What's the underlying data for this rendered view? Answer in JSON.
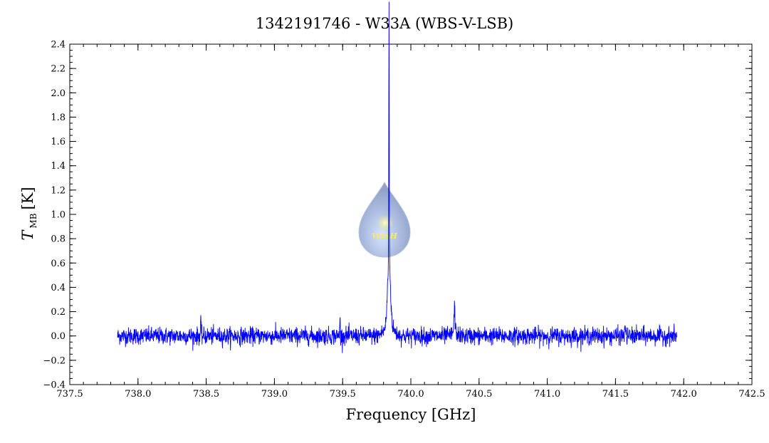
{
  "chart_data": {
    "type": "line",
    "title": "1342191746 - W33A (WBS-V-LSB)",
    "xlabel": "Frequency [GHz]",
    "ylabel": {
      "main": "T",
      "subscript": "MB",
      "unit": "[K]"
    },
    "xlim": [
      737.5,
      742.5
    ],
    "ylim": [
      -0.4,
      2.4
    ],
    "x_ticks": [
      "737.5",
      "738.0",
      "738.5",
      "739.0",
      "739.5",
      "740.0",
      "740.5",
      "741.0",
      "741.5",
      "742.0",
      "742.5"
    ],
    "y_ticks": [
      "−0.4",
      "−0.2",
      "0.0",
      "0.2",
      "0.4",
      "0.6",
      "0.8",
      "1.0",
      "1.2",
      "1.4",
      "1.6",
      "1.8",
      "2.0",
      "2.2",
      "2.4"
    ],
    "grid": false,
    "legend": "none",
    "series_color": "#0000ff",
    "series": [
      {
        "x_range": [
          737.85,
          741.95
        ],
        "baseline": 0.0,
        "noise_rms": 0.035,
        "features": [
          {
            "x": 739.84,
            "peak": 2.15,
            "type": "narrow emission line"
          },
          {
            "x": 739.84,
            "peak": 0.55,
            "type": "broad wing"
          },
          {
            "x": 740.32,
            "peak": 0.22,
            "type": "weak line"
          },
          {
            "x": 738.46,
            "peak": 0.19,
            "type": "weak spike"
          },
          {
            "x": 741.57,
            "peak": 0.17,
            "type": "weak spike"
          },
          {
            "x": 739.48,
            "peak": 0.21,
            "type": "weak spike"
          }
        ]
      }
    ]
  },
  "watermark": {
    "text": "WISH",
    "colors": {
      "drop": "#9fb3dd",
      "star": "#f5e84a"
    }
  }
}
